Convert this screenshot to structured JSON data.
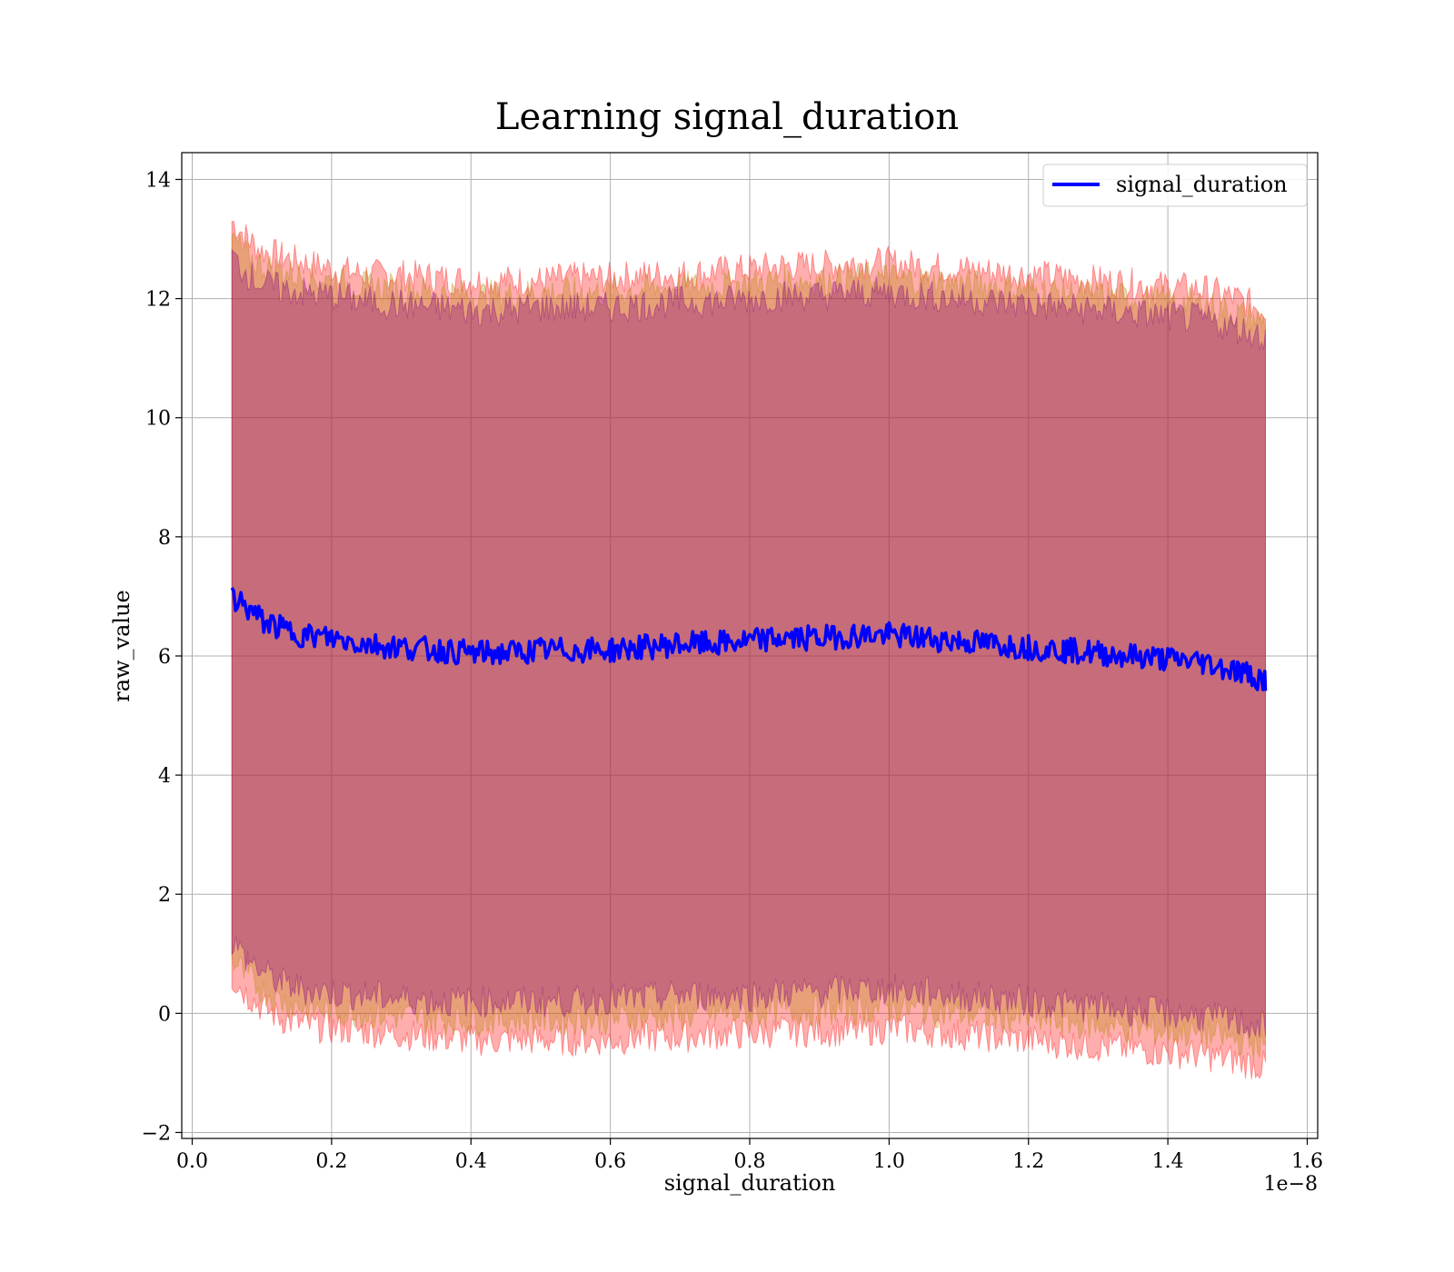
{
  "chart_data": {
    "type": "line",
    "title": "Learning signal_duration",
    "xlabel": "signal_duration",
    "ylabel": "raw_value",
    "x_offset_label": "1e−8",
    "xlim": [
      -0.015,
      1.615
    ],
    "ylim": [
      -2.1,
      14.45
    ],
    "x_ticks": [
      0.0,
      0.2,
      0.4,
      0.6,
      0.8,
      1.0,
      1.2,
      1.4,
      1.6
    ],
    "x_tick_labels": [
      "0.0",
      "0.2",
      "0.4",
      "0.6",
      "0.8",
      "1.0",
      "1.2",
      "1.4",
      "1.6"
    ],
    "y_ticks": [
      -2,
      0,
      2,
      4,
      6,
      8,
      10,
      12,
      14
    ],
    "y_tick_labels": [
      "−2",
      "0",
      "2",
      "4",
      "6",
      "8",
      "10",
      "12",
      "14"
    ],
    "grid": true,
    "legend_position": "top-right",
    "series": [
      {
        "name": "signal_duration",
        "color": "#0000ff",
        "x": [
          0.057,
          0.08,
          0.1,
          0.13,
          0.16,
          0.2,
          0.25,
          0.3,
          0.35,
          0.4,
          0.45,
          0.5,
          0.55,
          0.6,
          0.65,
          0.7,
          0.75,
          0.8,
          0.85,
          0.9,
          0.95,
          1.0,
          1.05,
          1.1,
          1.15,
          1.2,
          1.25,
          1.3,
          1.35,
          1.4,
          1.45,
          1.5,
          1.54
        ],
        "y": [
          7.0,
          6.8,
          6.6,
          6.45,
          6.35,
          6.3,
          6.2,
          6.15,
          6.1,
          6.05,
          6.05,
          6.1,
          6.1,
          6.1,
          6.15,
          6.2,
          6.2,
          6.25,
          6.3,
          6.3,
          6.35,
          6.35,
          6.3,
          6.25,
          6.2,
          6.15,
          6.1,
          6.05,
          6.0,
          5.95,
          5.9,
          5.75,
          5.6
        ]
      }
    ],
    "bands": [
      {
        "color": "#ff0000",
        "x": [
          0.057,
          0.08,
          0.1,
          0.13,
          0.16,
          0.2,
          0.25,
          0.3,
          0.35,
          0.4,
          0.45,
          0.5,
          0.55,
          0.6,
          0.65,
          0.7,
          0.75,
          0.8,
          0.85,
          0.9,
          0.95,
          1.0,
          1.05,
          1.1,
          1.15,
          1.2,
          1.25,
          1.3,
          1.35,
          1.4,
          1.45,
          1.5,
          1.54
        ],
        "upper": [
          13.3,
          13.0,
          12.8,
          12.7,
          12.6,
          12.5,
          12.4,
          12.4,
          12.35,
          12.3,
          12.3,
          12.3,
          12.35,
          12.35,
          12.4,
          12.4,
          12.45,
          12.5,
          12.55,
          12.55,
          12.6,
          12.6,
          12.55,
          12.5,
          12.45,
          12.4,
          12.35,
          12.3,
          12.25,
          12.2,
          12.15,
          12.0,
          11.8
        ],
        "lower": [
          0.6,
          0.3,
          0.1,
          -0.1,
          -0.2,
          -0.25,
          -0.3,
          -0.35,
          -0.4,
          -0.45,
          -0.45,
          -0.45,
          -0.45,
          -0.45,
          -0.4,
          -0.4,
          -0.35,
          -0.35,
          -0.3,
          -0.3,
          -0.3,
          -0.25,
          -0.3,
          -0.35,
          -0.4,
          -0.45,
          -0.5,
          -0.55,
          -0.6,
          -0.65,
          -0.7,
          -0.8,
          -0.9
        ]
      },
      {
        "color": "#b8860b",
        "x": [
          0.057,
          0.08,
          0.1,
          0.13,
          0.16,
          0.2,
          0.25,
          0.3,
          0.35,
          0.4,
          0.45,
          0.5,
          0.55,
          0.6,
          0.65,
          0.7,
          0.75,
          0.8,
          0.85,
          0.9,
          0.95,
          1.0,
          1.05,
          1.1,
          1.15,
          1.2,
          1.25,
          1.3,
          1.35,
          1.4,
          1.45,
          1.5,
          1.54
        ],
        "upper": [
          13.0,
          12.7,
          12.55,
          12.45,
          12.35,
          12.3,
          12.2,
          12.15,
          12.1,
          12.05,
          12.05,
          12.1,
          12.1,
          12.1,
          12.15,
          12.2,
          12.2,
          12.25,
          12.3,
          12.3,
          12.35,
          12.35,
          12.3,
          12.25,
          12.2,
          12.15,
          12.1,
          12.05,
          12.0,
          11.95,
          11.9,
          11.75,
          11.6
        ],
        "lower": [
          0.9,
          0.6,
          0.4,
          0.2,
          0.1,
          0.05,
          0.0,
          -0.05,
          -0.1,
          -0.1,
          -0.1,
          -0.1,
          -0.1,
          -0.1,
          -0.05,
          -0.05,
          0.0,
          0.0,
          0.05,
          0.05,
          0.05,
          0.1,
          0.05,
          0.0,
          -0.05,
          -0.1,
          -0.15,
          -0.2,
          -0.25,
          -0.3,
          -0.35,
          -0.45,
          -0.55
        ]
      },
      {
        "color": "#800080",
        "x": [
          0.057,
          0.08,
          0.1,
          0.13,
          0.16,
          0.2,
          0.25,
          0.3,
          0.35,
          0.4,
          0.45,
          0.5,
          0.55,
          0.6,
          0.65,
          0.7,
          0.75,
          0.8,
          0.85,
          0.9,
          0.95,
          1.0,
          1.05,
          1.1,
          1.15,
          1.2,
          1.25,
          1.3,
          1.35,
          1.4,
          1.45,
          1.5,
          1.54
        ],
        "upper": [
          12.7,
          12.4,
          12.25,
          12.15,
          12.1,
          12.05,
          11.95,
          11.9,
          11.85,
          11.8,
          11.8,
          11.85,
          11.85,
          11.85,
          11.9,
          11.95,
          11.95,
          12.0,
          12.05,
          12.05,
          12.1,
          12.1,
          12.05,
          12.0,
          11.95,
          11.9,
          11.85,
          11.8,
          11.75,
          11.7,
          11.65,
          11.5,
          11.35
        ],
        "lower": [
          1.2,
          0.9,
          0.7,
          0.5,
          0.4,
          0.35,
          0.3,
          0.25,
          0.2,
          0.2,
          0.2,
          0.2,
          0.2,
          0.25,
          0.25,
          0.3,
          0.3,
          0.3,
          0.35,
          0.35,
          0.4,
          0.4,
          0.35,
          0.3,
          0.25,
          0.2,
          0.15,
          0.1,
          0.05,
          0.0,
          -0.05,
          -0.15,
          -0.25
        ]
      }
    ]
  }
}
